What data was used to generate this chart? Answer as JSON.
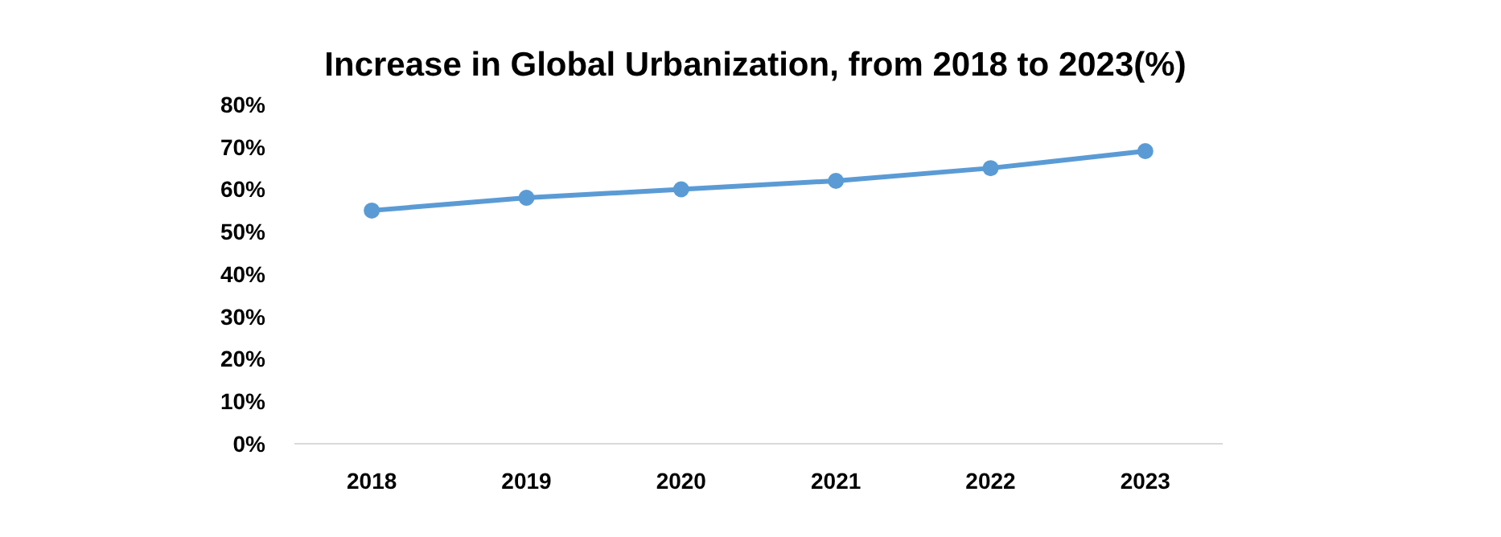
{
  "chart_data": {
    "type": "line",
    "title": "Increase in Global Urbanization, from 2018 to 2023(%)",
    "categories": [
      "2018",
      "2019",
      "2020",
      "2021",
      "2022",
      "2023"
    ],
    "series": [
      {
        "color": "#5b9bd5",
        "values": [
          55,
          58,
          60,
          62,
          65,
          69
        ]
      }
    ],
    "ylim": [
      0,
      80
    ],
    "yticks": [
      {
        "value": 0,
        "label": "0%"
      },
      {
        "value": 10,
        "label": "10%"
      },
      {
        "value": 20,
        "label": "20%"
      },
      {
        "value": 30,
        "label": "30%"
      },
      {
        "value": 40,
        "label": "40%"
      },
      {
        "value": 50,
        "label": "50%"
      },
      {
        "value": 60,
        "label": "60%"
      },
      {
        "value": 70,
        "label": "70%"
      },
      {
        "value": 80,
        "label": "80%"
      }
    ],
    "grid": false,
    "marker": "circle",
    "line_style": "solid"
  }
}
